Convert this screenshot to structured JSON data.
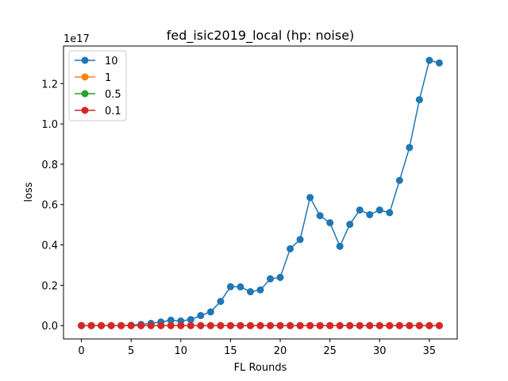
{
  "chart_data": {
    "type": "line",
    "title": "fed_isic2019_local (hp: noise)",
    "xlabel": "FL Rounds",
    "ylabel": "loss",
    "y_offset_label": "1e17",
    "xlim": [
      -1.8,
      37.8
    ],
    "ylim": [
      -0.066,
      1.386
    ],
    "xticks": [
      0,
      5,
      10,
      15,
      20,
      25,
      30,
      35
    ],
    "yticks": [
      0.0,
      0.2,
      0.4,
      0.6,
      0.8,
      1.0,
      1.2
    ],
    "ytick_labels": [
      "0.0",
      "0.2",
      "0.4",
      "0.6",
      "0.8",
      "1.0",
      "1.2"
    ],
    "grid": false,
    "legend_position": "top-left",
    "x": [
      0,
      1,
      2,
      3,
      4,
      5,
      6,
      7,
      8,
      9,
      10,
      11,
      12,
      13,
      14,
      15,
      16,
      17,
      18,
      19,
      20,
      21,
      22,
      23,
      24,
      25,
      26,
      27,
      28,
      29,
      30,
      31,
      32,
      33,
      34,
      35,
      36
    ],
    "series": [
      {
        "name": "10",
        "color": "#1f77b4",
        "values": [
          0.0,
          0.0,
          0.0,
          0.0,
          0.0,
          0.002,
          0.006,
          0.011,
          0.018,
          0.027,
          0.023,
          0.03,
          0.05,
          0.068,
          0.12,
          0.193,
          0.192,
          0.168,
          0.177,
          0.232,
          0.239,
          0.381,
          0.427,
          0.635,
          0.545,
          0.51,
          0.393,
          0.502,
          0.573,
          0.55,
          0.573,
          0.56,
          0.72,
          0.883,
          1.12,
          1.315,
          1.302
        ]
      },
      {
        "name": "1",
        "color": "#ff7f0e",
        "values": [
          0,
          0,
          0,
          0,
          0,
          0,
          0,
          0,
          0,
          0,
          0,
          0,
          0,
          0,
          0,
          0,
          0,
          0,
          0,
          0,
          0,
          0,
          0,
          0,
          0,
          0,
          0,
          0,
          0,
          0,
          0,
          0,
          0,
          0,
          0,
          0,
          0
        ]
      },
      {
        "name": "0.5",
        "color": "#2ca02c",
        "values": [
          0,
          0,
          0,
          0,
          0,
          0,
          0,
          0,
          0,
          0,
          0,
          0,
          0,
          0,
          0,
          0,
          0,
          0,
          0,
          0,
          0,
          0,
          0,
          0,
          0,
          0,
          0,
          0,
          0,
          0,
          0,
          0,
          0,
          0,
          0,
          0,
          0
        ]
      },
      {
        "name": "0.1",
        "color": "#d62728",
        "values": [
          0,
          0,
          0,
          0,
          0,
          0,
          0,
          0,
          0,
          0,
          0,
          0,
          0,
          0,
          0,
          0,
          0,
          0,
          0,
          0,
          0,
          0,
          0,
          0,
          0,
          0,
          0,
          0,
          0,
          0,
          0,
          0,
          0,
          0,
          0,
          0,
          0
        ]
      }
    ]
  }
}
